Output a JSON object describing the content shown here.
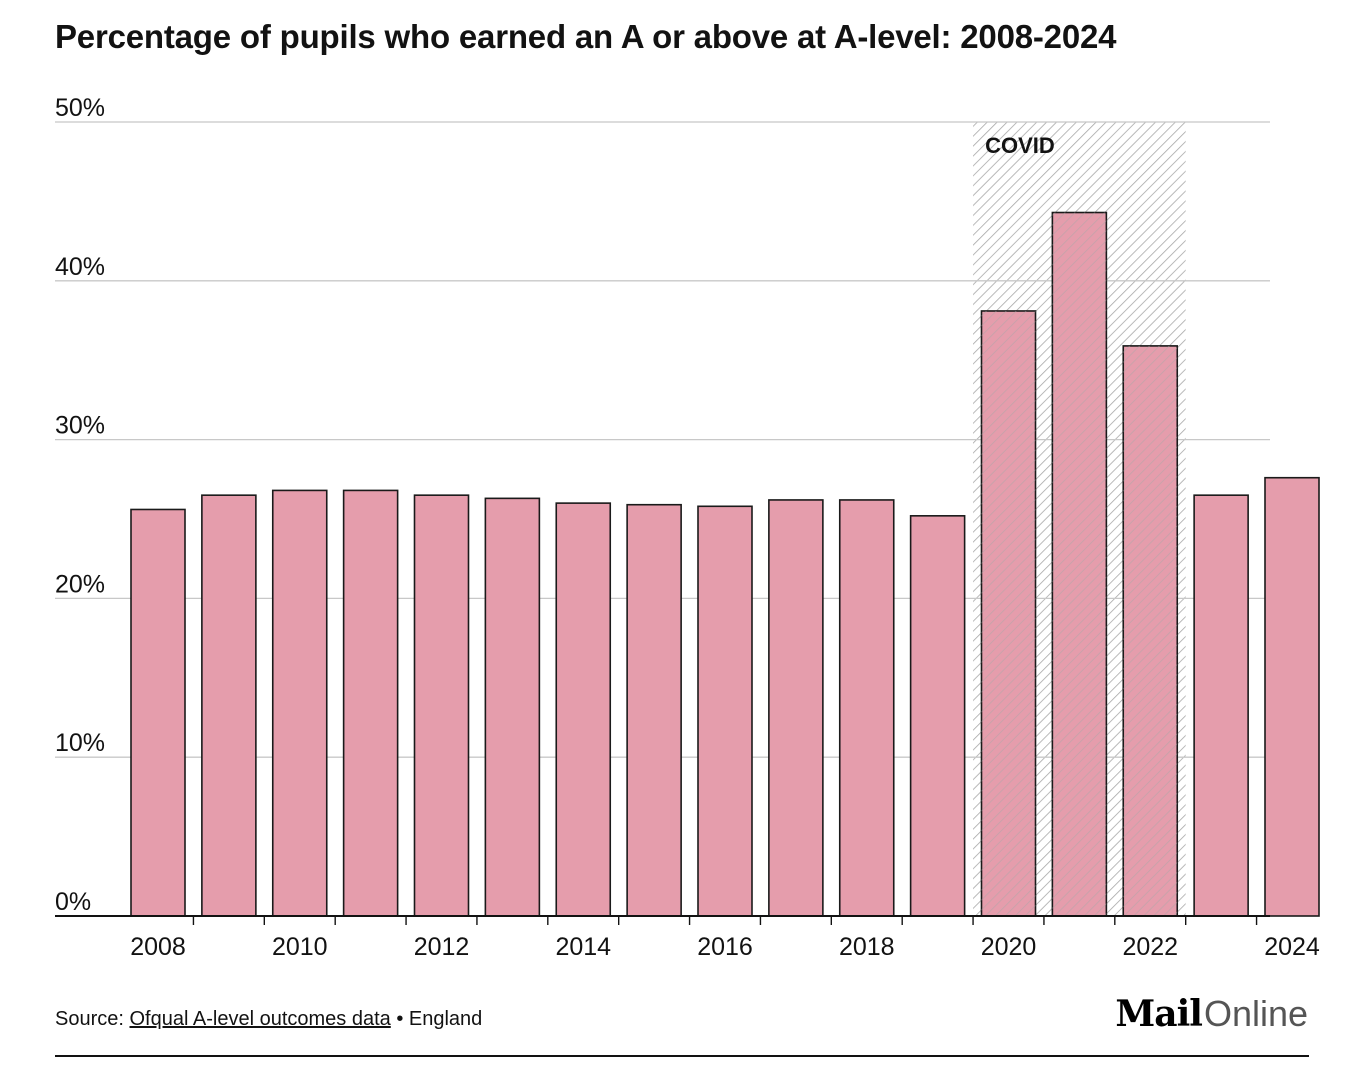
{
  "colors": {
    "bar_fill": "#e59dac",
    "bar_stroke": "#1a1a1a",
    "grid": "#c8c8c8",
    "axis": "#121212",
    "hatch": "#a8a8a8"
  },
  "chart_data": {
    "type": "bar",
    "title": "Percentage of pupils who earned an A or above at A-level: 2008-2024",
    "xlabel": "",
    "ylabel": "",
    "categories": [
      "2008",
      "2009",
      "2010",
      "2011",
      "2012",
      "2013",
      "2014",
      "2015",
      "2016",
      "2017",
      "2018",
      "2019",
      "2020",
      "2021",
      "2022",
      "2023",
      "2024"
    ],
    "values": [
      25.6,
      26.5,
      26.8,
      26.8,
      26.5,
      26.3,
      26.0,
      25.9,
      25.8,
      26.2,
      26.2,
      25.2,
      38.1,
      44.3,
      35.9,
      26.5,
      27.6
    ],
    "ylim": [
      0,
      50
    ],
    "y_ticks": [
      0,
      10,
      20,
      30,
      40,
      50
    ],
    "y_tick_labels": [
      "0%",
      "10%",
      "20%",
      "30%",
      "40%",
      "50%"
    ],
    "x_tick_labels": [
      "2008",
      "",
      "2010",
      "",
      "2012",
      "",
      "2014",
      "",
      "2016",
      "",
      "2018",
      "",
      "2020",
      "",
      "2022",
      "",
      "2024"
    ],
    "grid": true,
    "legend": "none",
    "annotations": [
      {
        "label": "COVID",
        "from": "2020",
        "to": "2022",
        "style": "hatched-band"
      }
    ]
  },
  "footer": {
    "source_prefix": "Source:",
    "source_link": "Ofqual A-level outcomes data",
    "separator": "•",
    "region": "England"
  },
  "brand": {
    "mail": "Mail",
    "online": "Online"
  }
}
